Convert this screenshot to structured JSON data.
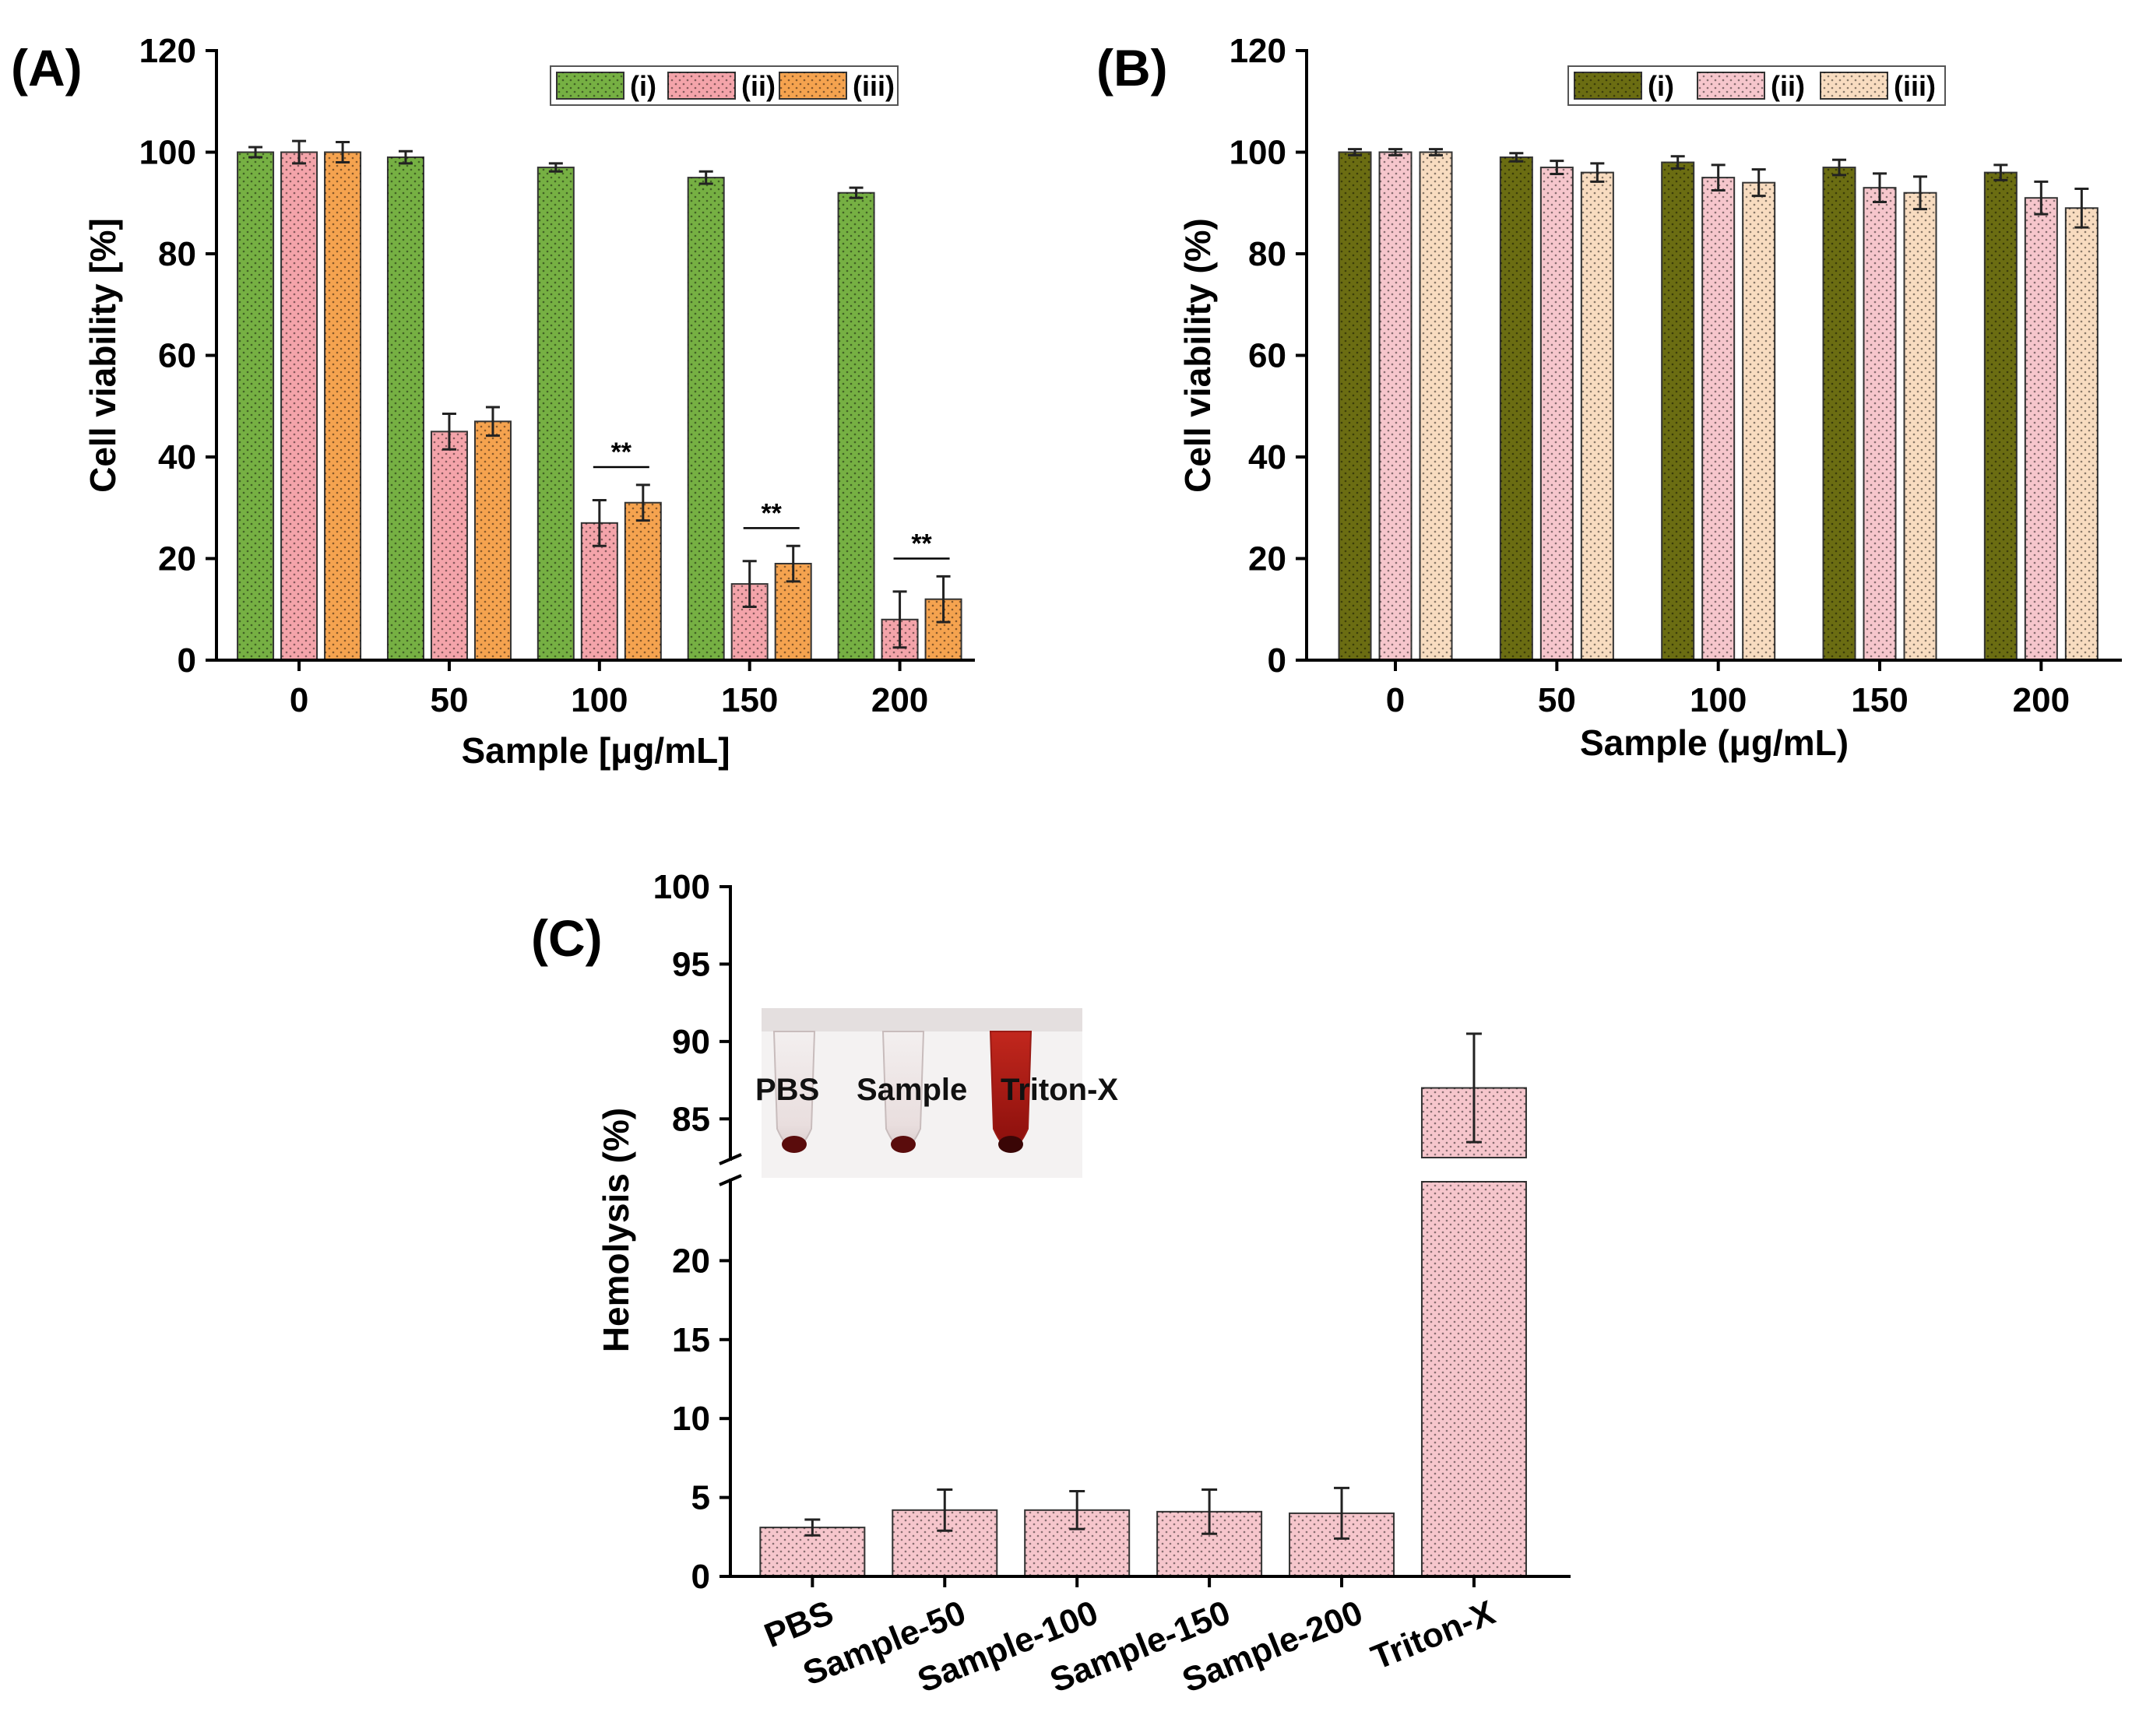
{
  "chart_data": [
    {
      "panel": "(A)",
      "type": "bar",
      "categories": [
        "0",
        "50",
        "100",
        "150",
        "200"
      ],
      "series": [
        {
          "name": "(i)",
          "color": "#76b043",
          "values": [
            100,
            99,
            97,
            95,
            92
          ],
          "errors": [
            1,
            1.2,
            0.8,
            1.2,
            1
          ]
        },
        {
          "name": "(ii)",
          "color": "#f4a4aa",
          "values": [
            100,
            45,
            27,
            15,
            8
          ],
          "errors": [
            2.2,
            3.5,
            4.5,
            4.5,
            5.5
          ]
        },
        {
          "name": "(iii)",
          "color": "#f5a34f",
          "values": [
            100,
            47,
            31,
            19,
            12
          ],
          "errors": [
            2,
            2.8,
            3.5,
            3.5,
            4.5
          ]
        }
      ],
      "significance": [
        {
          "category": "100",
          "label": "**"
        },
        {
          "category": "150",
          "label": "**"
        },
        {
          "category": "200",
          "label": "**"
        }
      ],
      "xlabel": "Sample [μg/mL]",
      "ylabel": "Cell viability [%]",
      "ylim": [
        0,
        120
      ],
      "yticks": [
        "0",
        "20",
        "40",
        "60",
        "80",
        "100",
        "120"
      ],
      "legend": "top-right"
    },
    {
      "panel": "(B)",
      "type": "bar",
      "categories": [
        "0",
        "50",
        "100",
        "150",
        "200"
      ],
      "series": [
        {
          "name": "(i)",
          "color": "#6b6d12",
          "values": [
            100,
            99,
            98,
            97,
            96
          ],
          "errors": [
            0.6,
            0.8,
            1.2,
            1.5,
            1.5
          ]
        },
        {
          "name": "(ii)",
          "color": "#f6c6cc",
          "values": [
            100,
            97,
            95,
            93,
            91
          ],
          "errors": [
            0.6,
            1.3,
            2.5,
            2.8,
            3.2
          ]
        },
        {
          "name": "(iii)",
          "color": "#f8dcc0",
          "values": [
            100,
            96,
            94,
            92,
            89
          ],
          "errors": [
            0.6,
            1.8,
            2.6,
            3.2,
            3.8
          ]
        }
      ],
      "xlabel": "Sample (μg/mL)",
      "ylabel": "Cell viability (%)",
      "ylim": [
        0,
        120
      ],
      "yticks": [
        "0",
        "20",
        "40",
        "60",
        "80",
        "100",
        "120"
      ],
      "legend": "top-right"
    },
    {
      "panel": "(C)",
      "type": "bar",
      "categories": [
        "PBS",
        "Sample-50",
        "Sample-100",
        "Sample-150",
        "Sample-200",
        "Triton-X"
      ],
      "values": [
        3.1,
        4.2,
        4.2,
        4.1,
        4.0,
        87
      ],
      "errors": [
        0.5,
        1.3,
        1.2,
        1.4,
        1.6,
        3.5
      ],
      "color": "#f6c6cc",
      "ylabel": "Hemolysis (%)",
      "ylim_lower": [
        0,
        25
      ],
      "ylim_upper": [
        82.5,
        100
      ],
      "yticks_lower": [
        "0",
        "5",
        "10",
        "15",
        "20"
      ],
      "yticks_upper": [
        "85",
        "90",
        "95",
        "100"
      ],
      "axis_break": true,
      "inset": {
        "labels": [
          "PBS",
          "Sample",
          "Triton-X"
        ]
      }
    }
  ]
}
